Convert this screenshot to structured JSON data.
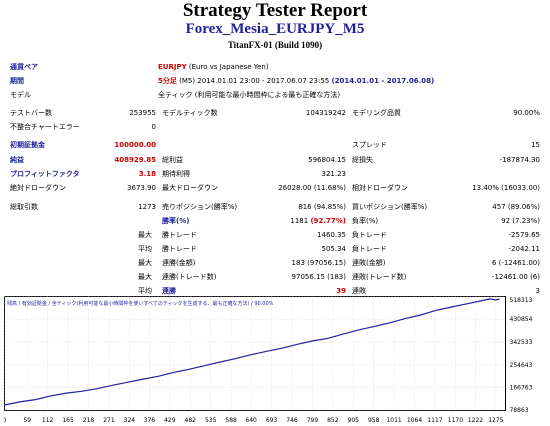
{
  "header": {
    "title": "Strategy Tester Report",
    "subtitle": "Forex_Mesia_EURJPY_M5",
    "build": "TitanFX-01 (Build 1090)"
  },
  "info": {
    "pair_label": "通貨ペア",
    "pair_code": "EURJPY",
    "pair_name": "(Euro vs Japanese Yen)",
    "period_label": "期間",
    "period_tf": "5分足",
    "period_range": "(M5) 2014.01.01 23:00 - 2017.06.07 23:55",
    "period_dates": "(2014.01.01 - 2017.06.08)",
    "model_label": "モデル",
    "model_value": "全ティック (利用可能な最小時間枠による最も正確な方法)"
  },
  "stats": {
    "test_bars_label": "テストバー数",
    "test_bars": "253955",
    "model_ticks_label": "モデルティック数",
    "model_ticks": "104319242",
    "model_quality_label": "モデリング品質",
    "model_quality": "90.00%",
    "mismatch_label": "不整合チャートエラー",
    "mismatch": "0",
    "initial_label": "初期証拠金",
    "initial": "100000.00",
    "spread_label": "スプレッド",
    "spread": "15",
    "net_label": "純益",
    "net": "408929.85",
    "gross_profit_label": "総利益",
    "gross_profit": "596804.15",
    "gross_loss_label": "総損失",
    "gross_loss": "-187874.30",
    "pf_label": "プロフィットファクタ",
    "pf": "3.18",
    "expected_label": "期待利得",
    "expected": "321.23",
    "abs_dd_label": "絶対ドローダウン",
    "abs_dd": "3673.90",
    "max_dd_label": "最大ドローダウン",
    "max_dd": "26028.00 (11.68%)",
    "rel_dd_label": "相対ドローダウン",
    "rel_dd": "13.40% (16033.00)",
    "total_trades_label": "総取引数",
    "total_trades": "1273",
    "short_label": "売りポジション(勝率%)",
    "short": "816 (94.85%)",
    "long_label": "買いポジション(勝率%)",
    "long": "457 (89.06%)",
    "win_label": "勝率(%)",
    "win_count": "1181",
    "win_pct": "(92.77%)",
    "loss_label": "負率(%)",
    "loss": "92 (7.23%)",
    "max_label": "最大",
    "largest_win_label": "勝トレード",
    "largest_win": "1460.35",
    "largest_loss_label": "負トレード",
    "largest_loss": "-2579.65",
    "avg_label": "平均",
    "avg_win_label": "勝トレード",
    "avg_win": "505.34",
    "avg_loss_label": "負トレード",
    "avg_loss": "-2042.11",
    "max_cons_wins_label": "連勝(金額)",
    "max_cons_wins": "183 (97056.15)",
    "max_cons_losses_label": "連敗(金額)",
    "max_cons_losses": "6 (-12461.00)",
    "max_cons_profit_label": "連勝(トレード数)",
    "max_cons_profit": "97056.15 (183)",
    "max_cons_loss_label": "連敗(トレード数)",
    "max_cons_loss": "-12461.00 (6)",
    "avg_cons_wins_label": "連勝",
    "avg_cons_wins": "39",
    "avg_cons_losses_label": "連敗",
    "avg_cons_losses": "3"
  },
  "chart_data": {
    "type": "line",
    "legend": "残高 / 有効証拠金 / 全ティック(利用可能な最小時間枠を使いすべてのティックを生成する、最も正確な方法) / 90.00%",
    "x_ticks": [
      "0",
      "59",
      "112",
      "165",
      "218",
      "271",
      "324",
      "376",
      "429",
      "482",
      "535",
      "588",
      "640",
      "693",
      "746",
      "799",
      "852",
      "905",
      "958",
      "1011",
      "1064",
      "1117",
      "1170",
      "1222",
      "1275"
    ],
    "y_ticks": [
      "518313",
      "430854",
      "342533",
      "254643",
      "166763",
      "78863"
    ],
    "ylim": [
      78863,
      518313
    ],
    "xlim": [
      0,
      1300
    ],
    "colors": {
      "line": "#1f1fa0",
      "grid": "#c8c8c8",
      "legend": "#1f1fa0"
    },
    "x": [
      0,
      40,
      80,
      120,
      160,
      200,
      240,
      280,
      320,
      360,
      400,
      440,
      480,
      520,
      560,
      600,
      640,
      680,
      720,
      760,
      800,
      840,
      880,
      920,
      960,
      1000,
      1040,
      1080,
      1120,
      1160,
      1200,
      1240,
      1260,
      1275,
      1285
    ],
    "values": [
      100000,
      112000,
      121000,
      135000,
      146000,
      153000,
      163000,
      176000,
      188000,
      200000,
      211000,
      226000,
      238000,
      252000,
      266000,
      279000,
      294000,
      307000,
      319000,
      334000,
      347000,
      357000,
      374000,
      390000,
      403000,
      417000,
      433000,
      447000,
      465000,
      478000,
      490000,
      503000,
      509000,
      505000,
      508930
    ]
  }
}
